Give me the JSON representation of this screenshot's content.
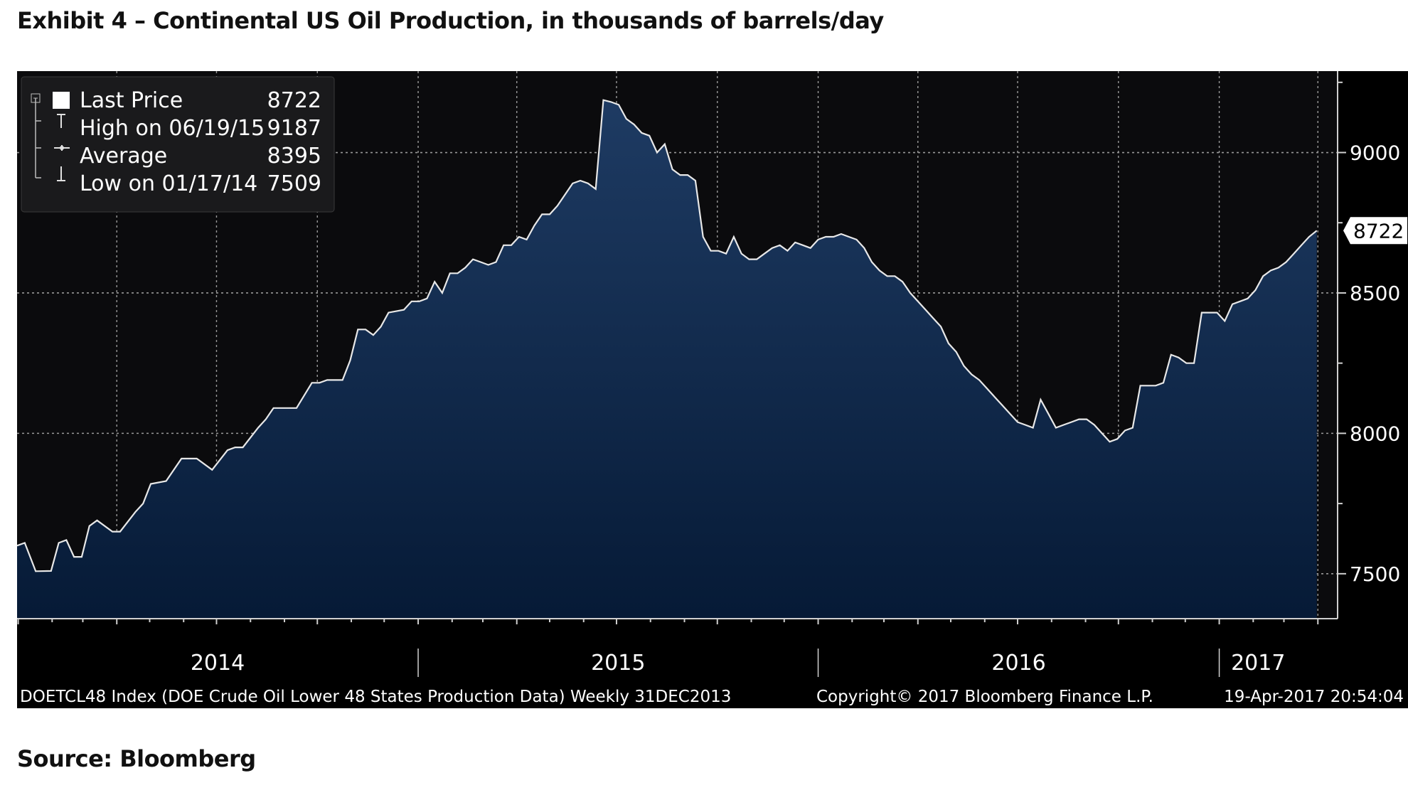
{
  "exhibit": {
    "title": "Exhibit 4 – Continental US Oil Production, in thousands of barrels/day",
    "source": "Source: Bloomberg"
  },
  "colors": {
    "background": "#000000",
    "plot_top": "#0b0b0d",
    "area_top": "#1e3b63",
    "area_bottom": "#061a36",
    "line": "#e8e8e8",
    "grid": "#9a9a9a",
    "text": "#ffffff"
  },
  "chart_data": {
    "type": "area",
    "title": "",
    "xlabel": "",
    "ylabel": "",
    "x_start": "2013-12-31",
    "x_end": "2017-04-19",
    "x_ticks": [
      "2014",
      "2015",
      "2016",
      "2017"
    ],
    "yticks": [
      9000,
      8500,
      8000,
      7500
    ],
    "ylim": [
      7340,
      9290
    ],
    "grid": true,
    "legend": {
      "placement": "top-left",
      "entries": [
        {
          "label": "Last Price",
          "value": "8722"
        },
        {
          "label": "High on 06/19/15",
          "value": "9187"
        },
        {
          "label": "Average",
          "value": "8395"
        },
        {
          "label": "Low on 01/17/14",
          "value": "7509"
        }
      ]
    },
    "last_price_label": "8722",
    "footer": {
      "left": "DOETCL48 Index (DOE Crude Oil Lower 48 States Production Data)  Weekly 31DEC2013",
      "center": "Copyright© 2017 Bloomberg Finance L.P.",
      "right": "19-Apr-2017 20:54:04"
    },
    "series": [
      {
        "values": [
          [
            "2013-12-31",
            7600
          ],
          [
            "2014-01-07",
            7610
          ],
          [
            "2014-01-17",
            7509
          ],
          [
            "2014-01-31",
            7510
          ],
          [
            "2014-02-07",
            7610
          ],
          [
            "2014-02-14",
            7620
          ],
          [
            "2014-02-21",
            7560
          ],
          [
            "2014-02-28",
            7560
          ],
          [
            "2014-03-07",
            7670
          ],
          [
            "2014-03-14",
            7690
          ],
          [
            "2014-03-28",
            7650
          ],
          [
            "2014-04-04",
            7650
          ],
          [
            "2014-04-18",
            7720
          ],
          [
            "2014-04-25",
            7750
          ],
          [
            "2014-05-02",
            7820
          ],
          [
            "2014-05-16",
            7830
          ],
          [
            "2014-05-30",
            7910
          ],
          [
            "2014-06-13",
            7910
          ],
          [
            "2014-06-27",
            7870
          ],
          [
            "2014-07-11",
            7940
          ],
          [
            "2014-07-18",
            7950
          ],
          [
            "2014-07-25",
            7950
          ],
          [
            "2014-08-08",
            8020
          ],
          [
            "2014-08-15",
            8050
          ],
          [
            "2014-08-22",
            8090
          ],
          [
            "2014-09-12",
            8090
          ],
          [
            "2014-09-26",
            8180
          ],
          [
            "2014-10-03",
            8180
          ],
          [
            "2014-10-10",
            8190
          ],
          [
            "2014-10-24",
            8190
          ],
          [
            "2014-10-31",
            8260
          ],
          [
            "2014-11-07",
            8370
          ],
          [
            "2014-11-14",
            8370
          ],
          [
            "2014-11-21",
            8350
          ],
          [
            "2014-11-28",
            8380
          ],
          [
            "2014-12-05",
            8430
          ],
          [
            "2014-12-19",
            8440
          ],
          [
            "2014-12-26",
            8470
          ],
          [
            "2015-01-02",
            8470
          ],
          [
            "2015-01-09",
            8480
          ],
          [
            "2015-01-16",
            8540
          ],
          [
            "2015-01-23",
            8500
          ],
          [
            "2015-01-30",
            8570
          ],
          [
            "2015-02-06",
            8570
          ],
          [
            "2015-02-13",
            8590
          ],
          [
            "2015-02-20",
            8620
          ],
          [
            "2015-02-27",
            8610
          ],
          [
            "2015-03-06",
            8600
          ],
          [
            "2015-03-13",
            8610
          ],
          [
            "2015-03-20",
            8670
          ],
          [
            "2015-03-27",
            8670
          ],
          [
            "2015-04-03",
            8700
          ],
          [
            "2015-04-10",
            8690
          ],
          [
            "2015-04-17",
            8740
          ],
          [
            "2015-04-24",
            8780
          ],
          [
            "2015-05-01",
            8780
          ],
          [
            "2015-05-08",
            8810
          ],
          [
            "2015-05-15",
            8850
          ],
          [
            "2015-05-22",
            8890
          ],
          [
            "2015-05-29",
            8900
          ],
          [
            "2015-06-05",
            8890
          ],
          [
            "2015-06-12",
            8870
          ],
          [
            "2015-06-19",
            9187
          ],
          [
            "2015-06-26",
            9180
          ],
          [
            "2015-07-03",
            9170
          ],
          [
            "2015-07-10",
            9120
          ],
          [
            "2015-07-17",
            9100
          ],
          [
            "2015-07-24",
            9070
          ],
          [
            "2015-07-31",
            9060
          ],
          [
            "2015-08-07",
            9000
          ],
          [
            "2015-08-14",
            9030
          ],
          [
            "2015-08-21",
            8940
          ],
          [
            "2015-08-28",
            8920
          ],
          [
            "2015-09-04",
            8920
          ],
          [
            "2015-09-11",
            8900
          ],
          [
            "2015-09-18",
            8700
          ],
          [
            "2015-09-25",
            8650
          ],
          [
            "2015-10-02",
            8650
          ],
          [
            "2015-10-09",
            8640
          ],
          [
            "2015-10-16",
            8700
          ],
          [
            "2015-10-23",
            8640
          ],
          [
            "2015-10-30",
            8620
          ],
          [
            "2015-11-06",
            8620
          ],
          [
            "2015-11-13",
            8640
          ],
          [
            "2015-11-20",
            8660
          ],
          [
            "2015-11-27",
            8670
          ],
          [
            "2015-12-04",
            8650
          ],
          [
            "2015-12-11",
            8680
          ],
          [
            "2015-12-18",
            8670
          ],
          [
            "2015-12-25",
            8660
          ],
          [
            "2016-01-01",
            8690
          ],
          [
            "2016-01-08",
            8700
          ],
          [
            "2016-01-15",
            8700
          ],
          [
            "2016-01-22",
            8710
          ],
          [
            "2016-01-29",
            8700
          ],
          [
            "2016-02-05",
            8690
          ],
          [
            "2016-02-12",
            8660
          ],
          [
            "2016-02-19",
            8610
          ],
          [
            "2016-02-26",
            8580
          ],
          [
            "2016-03-04",
            8560
          ],
          [
            "2016-03-11",
            8560
          ],
          [
            "2016-03-18",
            8540
          ],
          [
            "2016-03-25",
            8500
          ],
          [
            "2016-04-01",
            8470
          ],
          [
            "2016-04-08",
            8440
          ],
          [
            "2016-04-15",
            8410
          ],
          [
            "2016-04-22",
            8380
          ],
          [
            "2016-04-29",
            8320
          ],
          [
            "2016-05-06",
            8290
          ],
          [
            "2016-05-13",
            8240
          ],
          [
            "2016-05-20",
            8210
          ],
          [
            "2016-05-27",
            8190
          ],
          [
            "2016-06-03",
            8160
          ],
          [
            "2016-06-10",
            8130
          ],
          [
            "2016-06-17",
            8100
          ],
          [
            "2016-06-24",
            8070
          ],
          [
            "2016-07-01",
            8040
          ],
          [
            "2016-07-08",
            8030
          ],
          [
            "2016-07-15",
            8020
          ],
          [
            "2016-07-22",
            8120
          ],
          [
            "2016-07-29",
            8070
          ],
          [
            "2016-08-05",
            8020
          ],
          [
            "2016-08-12",
            8030
          ],
          [
            "2016-08-19",
            8040
          ],
          [
            "2016-08-26",
            8050
          ],
          [
            "2016-09-02",
            8050
          ],
          [
            "2016-09-09",
            8030
          ],
          [
            "2016-09-16",
            8000
          ],
          [
            "2016-09-23",
            7970
          ],
          [
            "2016-09-30",
            7980
          ],
          [
            "2016-10-07",
            8010
          ],
          [
            "2016-10-14",
            8020
          ],
          [
            "2016-10-21",
            8170
          ],
          [
            "2016-10-28",
            8170
          ],
          [
            "2016-11-04",
            8170
          ],
          [
            "2016-11-11",
            8180
          ],
          [
            "2016-11-18",
            8280
          ],
          [
            "2016-11-25",
            8270
          ],
          [
            "2016-12-02",
            8250
          ],
          [
            "2016-12-09",
            8250
          ],
          [
            "2016-12-16",
            8430
          ],
          [
            "2016-12-23",
            8430
          ],
          [
            "2016-12-30",
            8430
          ],
          [
            "2017-01-06",
            8400
          ],
          [
            "2017-01-13",
            8460
          ],
          [
            "2017-01-20",
            8470
          ],
          [
            "2017-01-27",
            8480
          ],
          [
            "2017-02-03",
            8510
          ],
          [
            "2017-02-10",
            8560
          ],
          [
            "2017-02-17",
            8580
          ],
          [
            "2017-02-24",
            8590
          ],
          [
            "2017-03-03",
            8610
          ],
          [
            "2017-03-10",
            8640
          ],
          [
            "2017-03-17",
            8670
          ],
          [
            "2017-03-24",
            8700
          ],
          [
            "2017-03-31",
            8722
          ]
        ]
      }
    ]
  }
}
